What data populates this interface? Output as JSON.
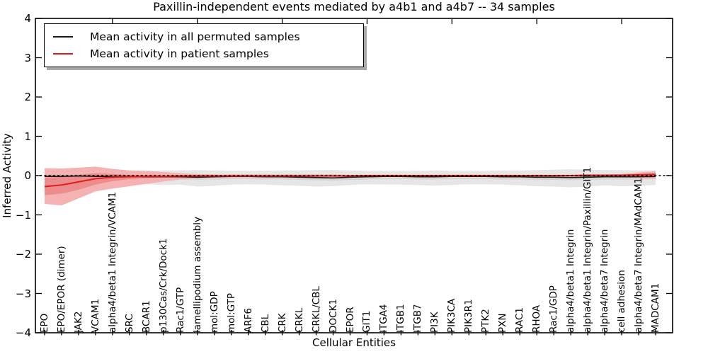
{
  "title": "Paxillin-independent events mediated by a4b1 and a4b7 -- 34 samples",
  "axes": {
    "ylabel": "Inferred Activity",
    "xlabel": "Cellular Entities",
    "yticks": [
      "4",
      "3",
      "2",
      "1",
      "0",
      "−1",
      "−2",
      "−3",
      "−4"
    ],
    "ylim": [
      -4,
      4
    ]
  },
  "legend": {
    "items": [
      {
        "label": "Mean activity in all permuted samples",
        "color": "#1a1a1a"
      },
      {
        "label": "Mean activity in patient samples",
        "color": "#e31a1a"
      }
    ]
  },
  "colors": {
    "background": "#ffffff",
    "spine": "#000000",
    "zero_line": "#000000",
    "legend_shadow": "#a9a9a9"
  },
  "chart_data": {
    "type": "line",
    "title": "Paxillin-independent events mediated by a4b1 and a4b7 -- 34 samples",
    "xlabel": "Cellular Entities",
    "ylabel": "Inferred Activity",
    "ylim": [
      -4,
      4
    ],
    "grid": false,
    "legend_position": "upper left",
    "zero_line": 0,
    "categories": [
      "EPO",
      "EPO/EPOR (dimer)",
      "JAK2",
      "VCAM1",
      "alpha4/beta1 Integrin/VCAM1",
      "SRC",
      "BCAR1",
      "p130Cas/Crk/Dock1",
      "Rac1/GTP",
      "lamellipodium assembly",
      "mol:GDP",
      "mol:GTP",
      "ARF6",
      "CBL",
      "CRK",
      "CRKL",
      "CRKL/CBL",
      "DOCK1",
      "EPOR",
      "GIT1",
      "ITGA4",
      "ITGB1",
      "ITGB7",
      "PI3K",
      "PIK3CA",
      "PIK3R1",
      "PTK2",
      "PXN",
      "RAC1",
      "RHOA",
      "Rac1/GDP",
      "alpha4/beta1 Integrin",
      "alpha4/beta1 Integrin/Paxillin/GIT1",
      "alpha4/beta7 Integrin",
      "cell adhesion",
      "alpha4/beta7 Integrin/MAdCAM1",
      "MADCAM1"
    ],
    "series": [
      {
        "name": "Mean activity in all permuted samples",
        "color": "#1a1a1a",
        "width": 1.7,
        "values": [
          -0.02,
          -0.02,
          -0.01,
          -0.02,
          -0.02,
          -0.02,
          -0.03,
          -0.03,
          -0.03,
          -0.04,
          -0.03,
          -0.02,
          -0.02,
          -0.03,
          -0.03,
          -0.04,
          -0.05,
          -0.06,
          -0.04,
          -0.03,
          -0.02,
          -0.02,
          -0.03,
          -0.03,
          -0.02,
          -0.02,
          -0.02,
          -0.03,
          -0.03,
          -0.04,
          -0.04,
          -0.05,
          -0.04,
          -0.03,
          -0.03,
          -0.03,
          -0.02
        ]
      },
      {
        "name": "Mean activity in patient samples",
        "color": "#e31a1a",
        "width": 2,
        "values": [
          -0.28,
          -0.24,
          -0.16,
          -0.08,
          -0.04,
          -0.03,
          -0.02,
          -0.02,
          -0.01,
          -0.01,
          -0.01,
          -0.01,
          -0.01,
          -0.01,
          -0.01,
          -0.01,
          -0.01,
          -0.01,
          -0.01,
          0.0,
          0.0,
          0.0,
          0.0,
          0.0,
          0.0,
          0.0,
          0.0,
          0.0,
          0.0,
          0.0,
          0.0,
          0.0,
          0.01,
          0.01,
          0.01,
          0.02,
          0.03
        ]
      }
    ],
    "bands": [
      {
        "name": "permuted-outer",
        "color": "#e6e6e6",
        "upper": [
          0.15,
          0.14,
          0.14,
          0.13,
          0.12,
          0.12,
          0.12,
          0.13,
          0.13,
          0.14,
          0.13,
          0.12,
          0.12,
          0.12,
          0.13,
          0.13,
          0.14,
          0.14,
          0.13,
          0.12,
          0.12,
          0.12,
          0.12,
          0.13,
          0.12,
          0.12,
          0.12,
          0.13,
          0.13,
          0.14,
          0.15,
          0.16,
          0.15,
          0.14,
          0.14,
          0.13,
          0.13
        ],
        "lower": [
          -0.2,
          -0.21,
          -0.22,
          -0.2,
          -0.19,
          -0.2,
          -0.22,
          -0.24,
          -0.23,
          -0.28,
          -0.26,
          -0.23,
          -0.22,
          -0.23,
          -0.25,
          -0.26,
          -0.28,
          -0.27,
          -0.24,
          -0.22,
          -0.23,
          -0.23,
          -0.24,
          -0.26,
          -0.24,
          -0.22,
          -0.22,
          -0.23,
          -0.25,
          -0.27,
          -0.28,
          -0.3,
          -0.28,
          -0.25,
          -0.27,
          -0.26,
          -0.24
        ]
      },
      {
        "name": "permuted-inner",
        "color": "#d6d6d6",
        "upper": [
          0.03,
          0.03,
          0.04,
          0.03,
          0.03,
          0.03,
          0.02,
          0.02,
          0.02,
          0.01,
          0.02,
          0.03,
          0.03,
          0.02,
          0.02,
          0.01,
          0.0,
          -0.01,
          0.01,
          0.02,
          0.03,
          0.03,
          0.02,
          0.02,
          0.03,
          0.03,
          0.03,
          0.02,
          0.02,
          0.01,
          0.01,
          0.0,
          0.01,
          0.02,
          0.02,
          0.02,
          0.03
        ],
        "lower": [
          -0.09,
          -0.09,
          -0.08,
          -0.09,
          -0.09,
          -0.09,
          -0.1,
          -0.1,
          -0.1,
          -0.11,
          -0.1,
          -0.09,
          -0.09,
          -0.1,
          -0.1,
          -0.11,
          -0.12,
          -0.13,
          -0.11,
          -0.1,
          -0.09,
          -0.09,
          -0.1,
          -0.1,
          -0.09,
          -0.09,
          -0.09,
          -0.1,
          -0.1,
          -0.11,
          -0.11,
          -0.12,
          -0.11,
          -0.1,
          -0.1,
          -0.1,
          -0.09
        ]
      },
      {
        "name": "patient-outer",
        "color": "#f5b2b2",
        "upper": [
          0.19,
          0.18,
          0.2,
          0.23,
          0.17,
          0.13,
          0.12,
          0.09,
          0.06,
          0.04,
          0.03,
          0.03,
          0.03,
          0.03,
          0.03,
          0.03,
          0.03,
          0.03,
          0.02,
          0.02,
          0.02,
          0.02,
          0.02,
          0.02,
          0.02,
          0.02,
          0.02,
          0.02,
          0.02,
          0.02,
          0.02,
          0.02,
          0.03,
          0.03,
          0.04,
          0.08,
          0.11
        ],
        "lower": [
          -0.72,
          -0.76,
          -0.58,
          -0.4,
          -0.33,
          -0.27,
          -0.21,
          -0.15,
          -0.1,
          -0.07,
          -0.05,
          -0.05,
          -0.04,
          -0.04,
          -0.04,
          -0.04,
          -0.04,
          -0.05,
          -0.04,
          -0.03,
          -0.03,
          -0.03,
          -0.03,
          -0.03,
          -0.03,
          -0.03,
          -0.03,
          -0.03,
          -0.03,
          -0.03,
          -0.03,
          -0.03,
          -0.04,
          -0.04,
          -0.05,
          -0.06,
          -0.08
        ]
      },
      {
        "name": "patient-inner",
        "color": "#ec8c8c",
        "upper": [
          -0.05,
          -0.03,
          0.02,
          0.06,
          0.04,
          0.02,
          0.02,
          0.01,
          0.01,
          0.01,
          0.01,
          0.01,
          0.01,
          0.01,
          0.01,
          0.01,
          0.01,
          0.01,
          0.01,
          0.01,
          0.01,
          0.01,
          0.01,
          0.01,
          0.01,
          0.01,
          0.01,
          0.01,
          0.01,
          0.01,
          0.01,
          0.01,
          0.01,
          0.02,
          0.02,
          0.04,
          0.06
        ],
        "lower": [
          -0.5,
          -0.46,
          -0.36,
          -0.23,
          -0.14,
          -0.09,
          -0.06,
          -0.05,
          -0.03,
          -0.03,
          -0.02,
          -0.02,
          -0.02,
          -0.02,
          -0.02,
          -0.02,
          -0.02,
          -0.03,
          -0.02,
          -0.02,
          -0.02,
          -0.02,
          -0.02,
          -0.02,
          -0.02,
          -0.02,
          -0.02,
          -0.02,
          -0.02,
          -0.02,
          -0.02,
          -0.02,
          -0.02,
          -0.03,
          -0.03,
          -0.04,
          -0.05
        ]
      }
    ]
  }
}
